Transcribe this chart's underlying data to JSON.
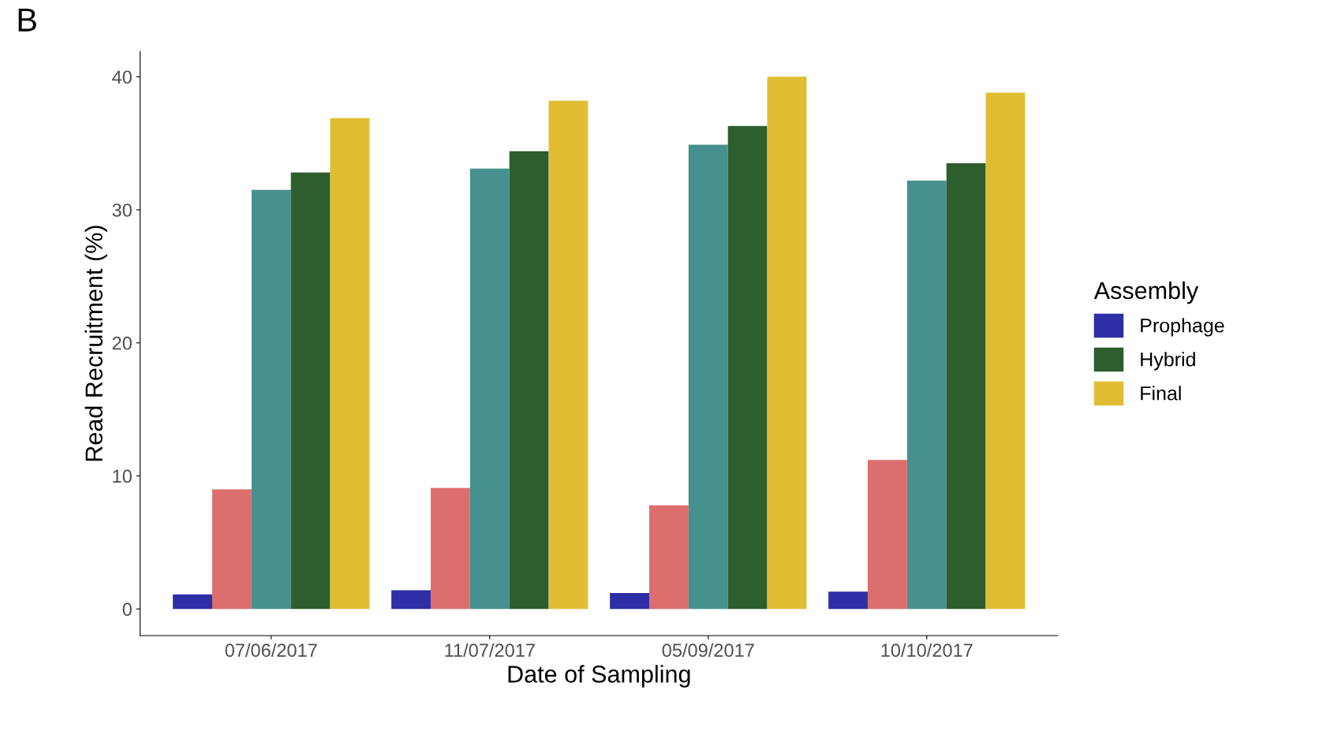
{
  "chart_data": {
    "type": "bar",
    "xlabel": "Date of Sampling",
    "ylabel": "Read Recruitment (%)",
    "legend_title": "Assembly",
    "annotations": [
      "B"
    ],
    "categories": [
      "07/06/2017",
      "11/07/2017",
      "05/09/2017",
      "10/10/2017"
    ],
    "series": [
      {
        "name": "Prophage",
        "color": "#2e2ea6",
        "values": [
          1.1,
          1.4,
          1.2,
          1.3
        ]
      },
      {
        "color": "#dd6e6e",
        "values": [
          9.0,
          9.1,
          7.8,
          11.2
        ]
      },
      {
        "color": "#46918f",
        "values": [
          31.5,
          33.1,
          34.9,
          32.2
        ]
      },
      {
        "name": "Hybrid",
        "color": "#2d5e2d",
        "values": [
          32.8,
          34.4,
          36.3,
          33.5
        ]
      },
      {
        "name": "Final",
        "color": "#e1bd33",
        "values": [
          36.9,
          38.2,
          40.0,
          38.8
        ]
      }
    ],
    "ylim": [
      -2,
      41.9
    ],
    "yticks": [
      0,
      10,
      20,
      30,
      40
    ],
    "grid": false,
    "legend": "right"
  }
}
